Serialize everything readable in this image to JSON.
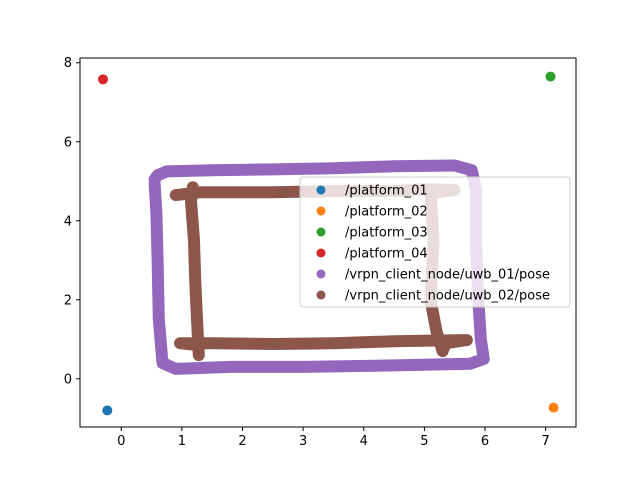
{
  "chart_data": {
    "type": "scatter",
    "title": "",
    "xlabel": "",
    "ylabel": "",
    "xlim": [
      -0.68,
      7.5
    ],
    "ylim": [
      -1.22,
      8.12
    ],
    "x_ticks": [
      0,
      1,
      2,
      3,
      4,
      5,
      6,
      7
    ],
    "y_ticks": [
      0,
      2,
      4,
      6,
      8
    ],
    "grid": false,
    "legend_position": "center-right",
    "series": [
      {
        "name": "/platform_01",
        "color": "#1f77b4",
        "points": [
          [
            -0.23,
            -0.8
          ]
        ]
      },
      {
        "name": "/platform_02",
        "color": "#ff7f0e",
        "points": [
          [
            7.13,
            -0.73
          ]
        ]
      },
      {
        "name": "/platform_03",
        "color": "#2ca02c",
        "points": [
          [
            7.08,
            7.65
          ]
        ]
      },
      {
        "name": "/platform_04",
        "color": "#d62728",
        "points": [
          [
            -0.3,
            7.58
          ]
        ]
      },
      {
        "name": "/vrpn_client_node/uwb_01/pose",
        "color": "#9467bd",
        "path": [
          [
            0.55,
            5.05
          ],
          [
            0.6,
            5.15
          ],
          [
            0.75,
            5.25
          ],
          [
            1.5,
            5.28
          ],
          [
            2.5,
            5.3
          ],
          [
            3.5,
            5.33
          ],
          [
            4.5,
            5.38
          ],
          [
            5.5,
            5.4
          ],
          [
            5.78,
            5.28
          ],
          [
            5.85,
            4.8
          ],
          [
            5.85,
            3.5
          ],
          [
            5.88,
            2.2
          ],
          [
            5.93,
            1.0
          ],
          [
            5.98,
            0.5
          ],
          [
            5.75,
            0.38
          ],
          [
            4.5,
            0.34
          ],
          [
            3.0,
            0.3
          ],
          [
            1.8,
            0.3
          ],
          [
            0.9,
            0.25
          ],
          [
            0.68,
            0.4
          ],
          [
            0.62,
            1.5
          ],
          [
            0.6,
            3.0
          ],
          [
            0.58,
            4.2
          ],
          [
            0.55,
            4.95
          ]
        ]
      },
      {
        "name": "/vrpn_client_node/uwb_02/pose",
        "color": "#8c564b",
        "path": [
          [
            0.9,
            4.65
          ],
          [
            1.3,
            4.72
          ],
          [
            2.5,
            4.72
          ],
          [
            3.5,
            4.75
          ],
          [
            4.5,
            4.75
          ],
          [
            5.0,
            4.8
          ],
          [
            5.5,
            4.78
          ],
          [
            5.1,
            4.7
          ],
          [
            5.15,
            3.5
          ],
          [
            5.1,
            2.0
          ],
          [
            5.2,
            1.2
          ],
          [
            5.3,
            0.7
          ],
          [
            5.35,
            0.9
          ],
          [
            5.7,
            0.98
          ],
          [
            5.2,
            0.97
          ],
          [
            4.5,
            0.95
          ],
          [
            3.5,
            0.9
          ],
          [
            2.5,
            0.88
          ],
          [
            1.5,
            0.9
          ],
          [
            0.97,
            0.9
          ],
          [
            1.27,
            0.85
          ],
          [
            1.28,
            0.6
          ],
          [
            1.25,
            1.5
          ],
          [
            1.22,
            2.5
          ],
          [
            1.2,
            3.5
          ],
          [
            1.15,
            4.5
          ],
          [
            1.18,
            4.85
          ]
        ]
      }
    ]
  }
}
